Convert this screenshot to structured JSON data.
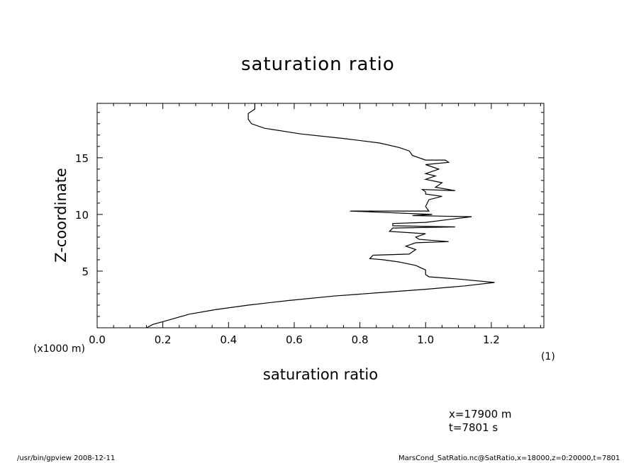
{
  "title": "saturation ratio",
  "chart_data": {
    "type": "line",
    "title": "saturation ratio",
    "xlabel": "saturation ratio",
    "x_unit": "(1)",
    "ylabel": "Z-coordinate",
    "y_unit": "(x1000 m)",
    "xlim": [
      0.0,
      1.36
    ],
    "ylim": [
      0.0,
      19.8
    ],
    "xticks": [
      "0.0",
      "0.2",
      "0.4",
      "0.6",
      "0.8",
      "1.0",
      "1.2"
    ],
    "yticks": [
      "5",
      "10",
      "15"
    ],
    "grid": false,
    "legend": "none",
    "series": [
      {
        "x": [
          0.15,
          0.17,
          0.22,
          0.28,
          0.36,
          0.46,
          0.58,
          0.72,
          0.86,
          1.0,
          1.12,
          1.21,
          1.1,
          1.01,
          1.0,
          1.0,
          0.97,
          0.92,
          0.87,
          0.83,
          0.84,
          0.95,
          0.97,
          0.94,
          0.97,
          1.07,
          0.98,
          0.97,
          1.0,
          0.89,
          0.9,
          1.09,
          0.9,
          0.9,
          1.0,
          1.14,
          0.96,
          1.02,
          0.77,
          1.01,
          1.0,
          1.01,
          1.05,
          1.0,
          1.0,
          0.99,
          1.09,
          1.03,
          1.05,
          1.0,
          1.03,
          1.0,
          1.04,
          1.0,
          1.07,
          1.06,
          1.0,
          0.96,
          0.95,
          0.92,
          0.86,
          0.75,
          0.62,
          0.51,
          0.47,
          0.46,
          0.46,
          0.48,
          0.48
        ],
        "y": [
          0.0,
          0.3,
          0.7,
          1.2,
          1.6,
          2.0,
          2.4,
          2.8,
          3.1,
          3.4,
          3.7,
          4.0,
          4.3,
          4.5,
          4.7,
          5.1,
          5.5,
          5.8,
          6.0,
          6.1,
          6.4,
          6.5,
          6.9,
          7.2,
          7.5,
          7.6,
          7.8,
          8.0,
          8.3,
          8.5,
          8.8,
          8.9,
          9.0,
          9.2,
          9.3,
          9.8,
          9.9,
          10.0,
          10.3,
          10.3,
          10.7,
          11.3,
          11.6,
          11.8,
          12.0,
          12.2,
          12.1,
          12.4,
          12.8,
          13.1,
          13.4,
          13.6,
          14.0,
          14.4,
          14.6,
          14.8,
          14.8,
          15.2,
          15.6,
          15.9,
          16.3,
          16.7,
          17.1,
          17.6,
          18.0,
          18.4,
          18.9,
          19.3,
          19.8
        ]
      }
    ]
  },
  "info": {
    "x_position": "x=17900  m",
    "time": "t=7801  s"
  },
  "footer": {
    "left": "/usr/bin/gpview   2008-12-11",
    "right": "MarsCond_SatRatio.nc@SatRatio,x=18000,z=0:20000,t=7801"
  }
}
